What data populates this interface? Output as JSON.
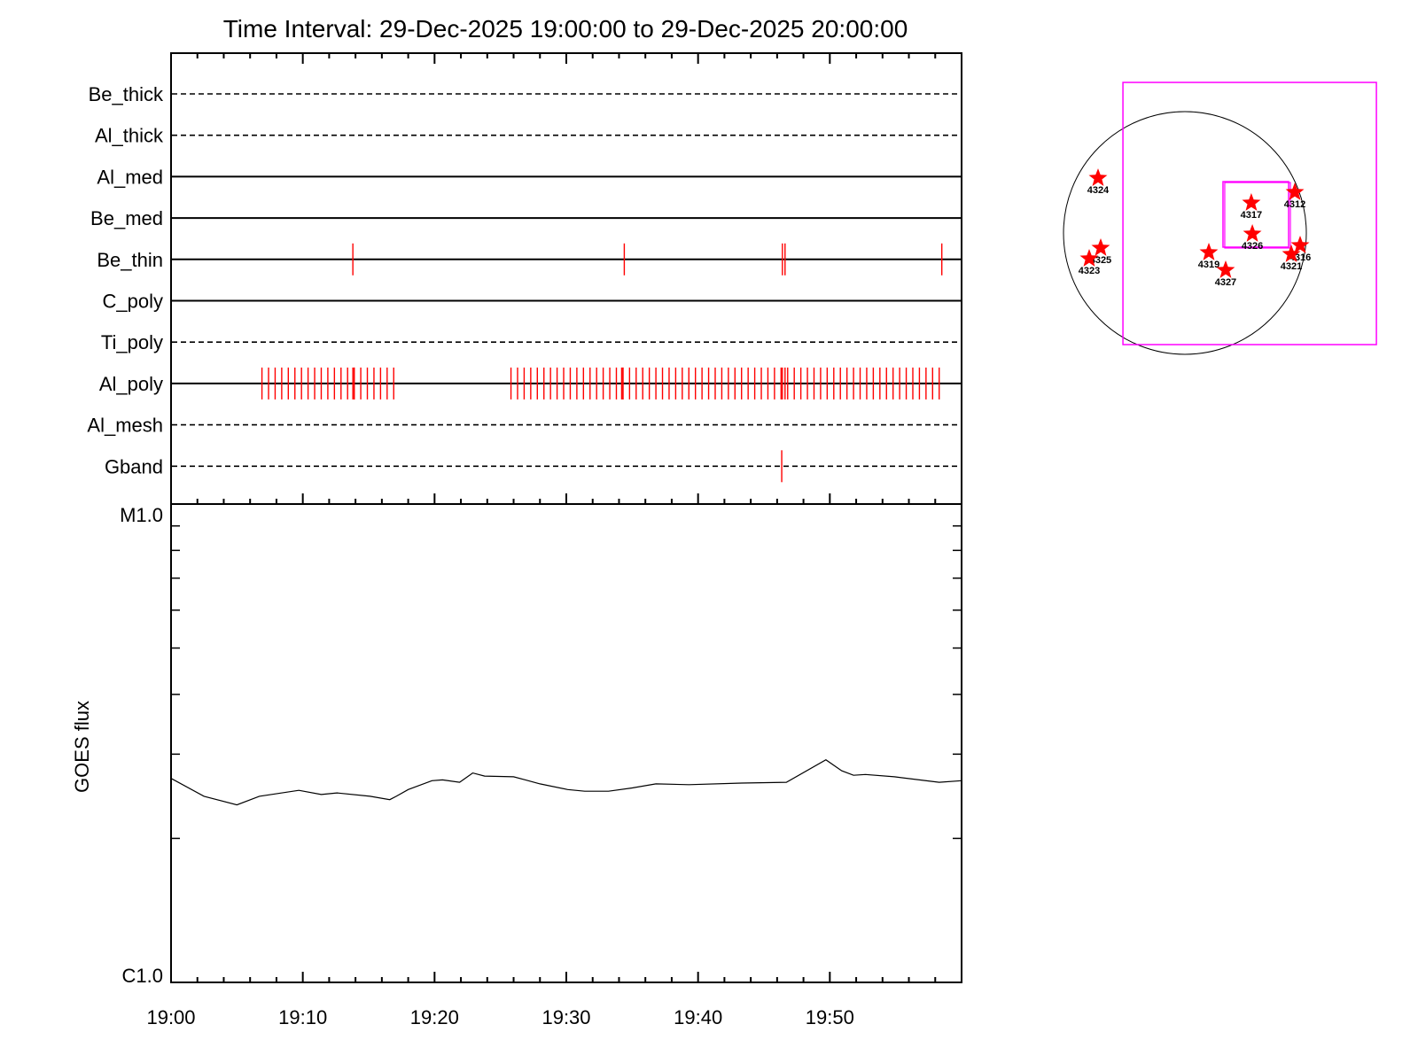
{
  "colors": {
    "event": "#ff0000",
    "fov": "#ff00ff",
    "axis": "#000000"
  },
  "chart_data": [
    {
      "type": "timeline",
      "title": "Time Interval: 29-Dec-2025 19:00:00 to 29-Dec-2025 20:00:00",
      "x_unit": "minutes after 19:00",
      "xlim": [
        0,
        60
      ],
      "rows": [
        {
          "label": "Be_thick",
          "line_style": "dashed",
          "events": []
        },
        {
          "label": "Al_thick",
          "line_style": "dashed",
          "events": []
        },
        {
          "label": "Al_med",
          "line_style": "solid",
          "events": []
        },
        {
          "label": "Be_med",
          "line_style": "solid",
          "events": []
        },
        {
          "label": "Be_thin",
          "line_style": "solid",
          "events": [
            13.8,
            34.4,
            46.4,
            46.6,
            58.5
          ]
        },
        {
          "label": "C_poly",
          "line_style": "solid",
          "events": []
        },
        {
          "label": "Ti_poly",
          "line_style": "dashed",
          "events": []
        },
        {
          "label": "Al_poly",
          "line_style": "solid",
          "events": [],
          "event_groups": [
            {
              "start": 6.9,
              "end": 16.9,
              "step": 0.5
            },
            {
              "start": 25.8,
              "end": 58.3,
              "step": 0.5
            }
          ],
          "extra_events": [
            13.8,
            13.9,
            34.2,
            34.3,
            46.4,
            46.6
          ]
        },
        {
          "label": "Al_mesh",
          "line_style": "dashed",
          "events": []
        },
        {
          "label": "Gband",
          "line_style": "dashed",
          "events": [
            46.35
          ]
        }
      ]
    },
    {
      "type": "line",
      "ylabel": "GOES flux",
      "yscale": "log",
      "ylim_C_units": [
        1,
        10
      ],
      "ytick_labels": [
        {
          "value": 10,
          "label": "M1.0"
        },
        {
          "value": 1,
          "label": "C1.0"
        }
      ],
      "xtick_labels": [
        {
          "value": 0,
          "label": "19:00"
        },
        {
          "value": 10,
          "label": "19:10"
        },
        {
          "value": 20,
          "label": "19:20"
        },
        {
          "value": 30,
          "label": "19:30"
        },
        {
          "value": 40,
          "label": "19:40"
        },
        {
          "value": 50,
          "label": "19:50"
        }
      ],
      "series": [
        {
          "name": "GOES flux (C-class multiplier)",
          "x": [
            0,
            2.5,
            5.0,
            6.7,
            9.7,
            11.4,
            12.6,
            15.1,
            16.6,
            17.1,
            18.0,
            19.8,
            20.6,
            21.9,
            22.9,
            23.8,
            26.0,
            26.9,
            28.0,
            30.1,
            31.4,
            33.2,
            35.0,
            36.8,
            39.3,
            43.3,
            46.7,
            49.7,
            50.9,
            51.8,
            52.7,
            54.9,
            58.3,
            60
          ],
          "y": [
            2.67,
            2.45,
            2.35,
            2.45,
            2.52,
            2.47,
            2.49,
            2.45,
            2.41,
            2.45,
            2.53,
            2.64,
            2.65,
            2.62,
            2.74,
            2.7,
            2.69,
            2.65,
            2.6,
            2.53,
            2.51,
            2.51,
            2.55,
            2.6,
            2.59,
            2.61,
            2.62,
            2.92,
            2.77,
            2.71,
            2.72,
            2.69,
            2.62,
            2.64
          ]
        }
      ]
    },
    {
      "type": "scatter",
      "description_units": "arcsec from disk center",
      "disk_radius": 960,
      "fov_boxes": [
        {
          "name": "large",
          "x": [
            -490,
            1514
          ],
          "y": [
            -883,
            1191
          ]
        },
        {
          "name": "small",
          "x": [
            301,
            820
          ],
          "y": [
            -112,
            406
          ]
        }
      ],
      "regions": [
        {
          "label": "4324",
          "x": -687,
          "y": 434
        },
        {
          "label": "4317",
          "x": 525,
          "y": 238
        },
        {
          "label": "4312",
          "x": 869,
          "y": 322
        },
        {
          "label": "4326",
          "x": 533,
          "y": -7
        },
        {
          "label": "4325",
          "x": -666,
          "y": -119
        },
        {
          "label": "4323",
          "x": -757,
          "y": -203
        },
        {
          "label": "4319",
          "x": 189,
          "y": -154
        },
        {
          "label": "4327",
          "x": 322,
          "y": -294
        },
        {
          "label": "4316",
          "x": 911,
          "y": -98
        },
        {
          "label": "4321",
          "x": 841,
          "y": -168
        }
      ]
    }
  ]
}
